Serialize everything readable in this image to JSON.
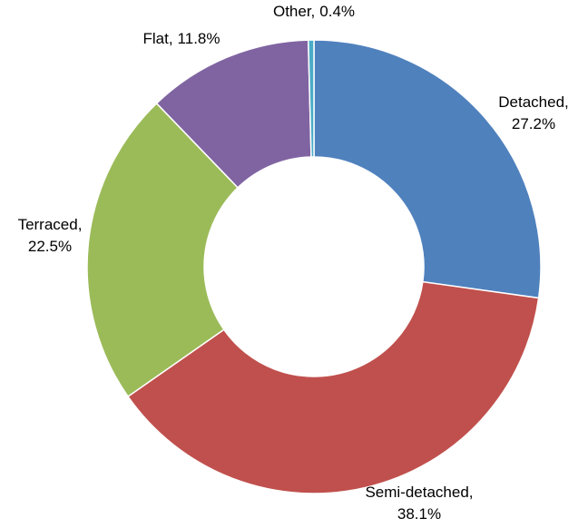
{
  "chart_data": {
    "type": "donut",
    "categories": [
      "Detached,",
      "Semi-detached,",
      "Terraced,",
      "Flat,",
      "Other,"
    ],
    "values": [
      27.2,
      38.1,
      22.5,
      11.8,
      0.4
    ],
    "value_labels": [
      "27.2%",
      "38.1%",
      "22.5%",
      "11.8%",
      "0.4%"
    ],
    "colors": [
      "#4f81bd",
      "#c0504d",
      "#9bbb59",
      "#8064a2",
      "#4bacc6"
    ]
  }
}
